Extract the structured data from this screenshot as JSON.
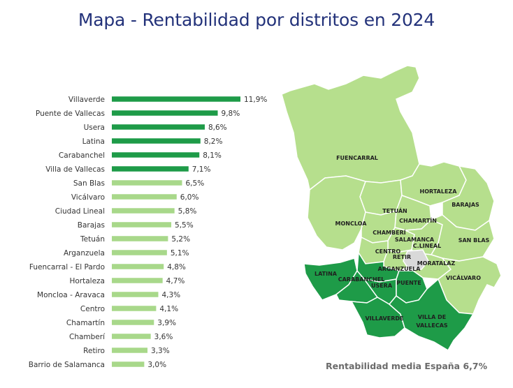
{
  "title": "Mapa - Rentabilidad por distritos en 2024",
  "footnote": "Rentabilidad media España 6,7%",
  "colors": {
    "highlight": "#1e9b48",
    "normal": "#a8d88a",
    "map_light": "#b6df8d",
    "map_dark": "#1e9b48",
    "map_center": "#d9d9d9",
    "title": "#23327a"
  },
  "chart_data": {
    "type": "bar",
    "orientation": "horizontal",
    "categories": [
      "Villaverde",
      "Puente de Vallecas",
      "Usera",
      "Latina",
      "Carabanchel",
      "Villa de Vallecas",
      "San Blas",
      "Vicálvaro",
      "Ciudad Lineal",
      "Barajas",
      "Tetuán",
      "Arganzuela",
      "Fuencarral - El Pardo",
      "Hortaleza",
      "Moncloa - Aravaca",
      "Centro",
      "Chamartín",
      "Chamberí",
      "Retiro",
      "Barrio de Salamanca"
    ],
    "values": [
      11.9,
      9.8,
      8.6,
      8.2,
      8.1,
      7.1,
      6.5,
      6.0,
      5.8,
      5.5,
      5.2,
      5.1,
      4.8,
      4.7,
      4.3,
      4.1,
      3.9,
      3.6,
      3.3,
      3.0
    ],
    "value_labels": [
      "11,9%",
      "9,8%",
      "8,6%",
      "8,2%",
      "8,1%",
      "7,1%",
      "6,5%",
      "6,0%",
      "5,8%",
      "5,5%",
      "5,2%",
      "5,1%",
      "4,8%",
      "4,7%",
      "4,3%",
      "4,1%",
      "3,9%",
      "3,6%",
      "3,3%",
      "3,0%"
    ],
    "highlighted": [
      true,
      true,
      true,
      true,
      true,
      true,
      false,
      false,
      false,
      false,
      false,
      false,
      false,
      false,
      false,
      false,
      false,
      false,
      false,
      false
    ],
    "grid": false
  },
  "map": {
    "labels": {
      "fuencarral": "FUENCARRAL",
      "hortaleza": "HORTALEZA",
      "barajas": "BARAJAS",
      "tetuan": "TETUÁN",
      "chamartin": "CHAMARTÍN",
      "moncloa": "MONCLOA",
      "chamberi": "CHAMBERÍ",
      "salamanca": "SALAMANCA",
      "clineal": "C.LINEAL",
      "sanblas": "SAN BLAS",
      "centro": "CENTRO",
      "retiro": "RETIR",
      "arganzuela": "ARGANZUELA",
      "moratalaz": "MORATALAZ",
      "latina": "LATINA",
      "carabanchel": "CARABANCHEL",
      "usera": "USERA",
      "puente": "PUENTE",
      "vicalvaro": "VICÁLVARO",
      "villaverde": "VILLAVERDE",
      "villa_line1": "VILLA DE",
      "villa_line2": "VALLECAS"
    }
  }
}
